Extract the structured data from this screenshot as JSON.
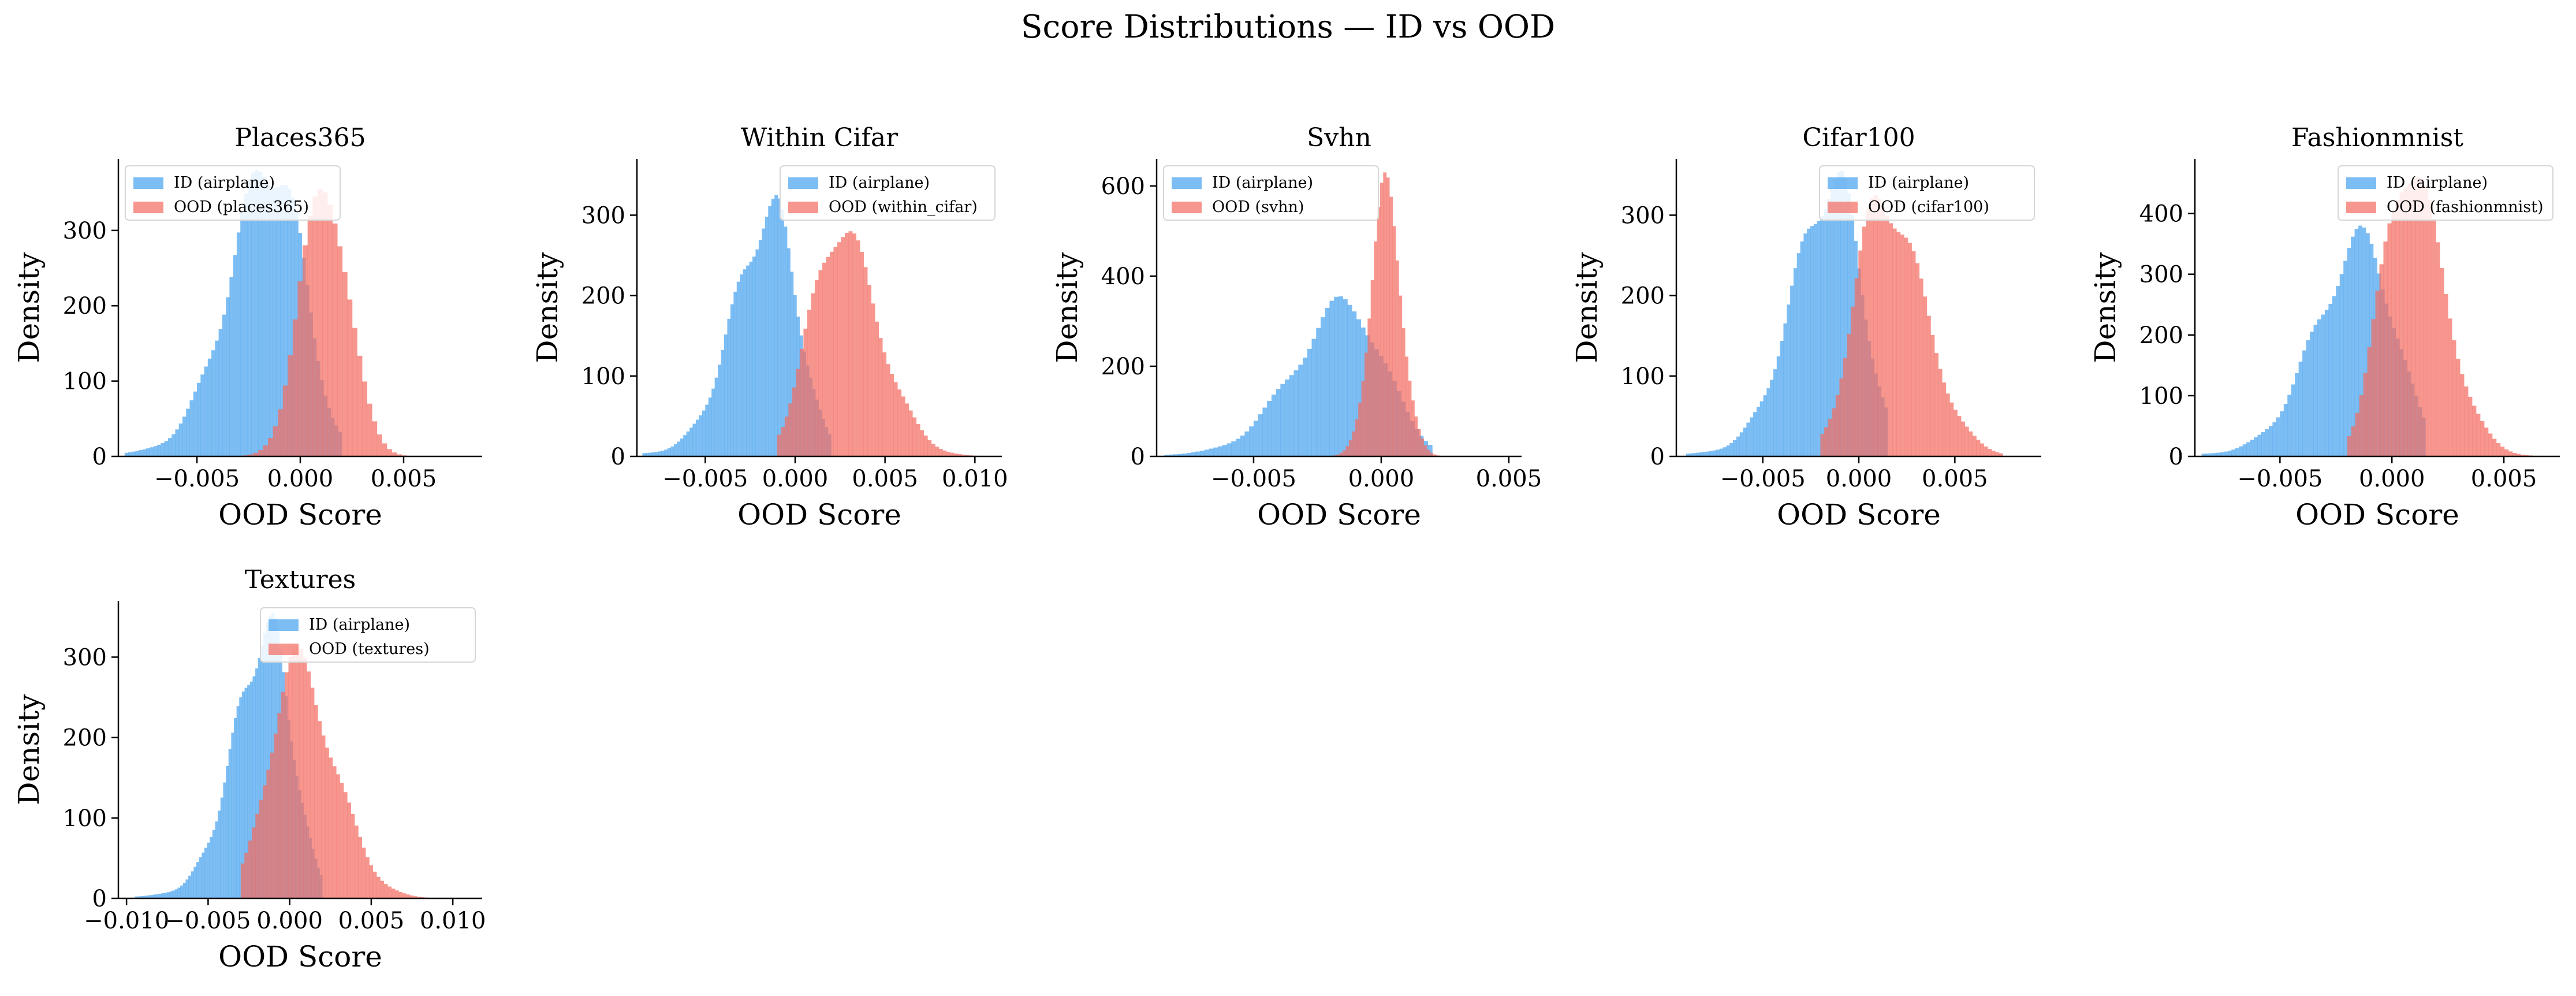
{
  "figure": {
    "title": "Score Distributions — ID vs OOD"
  },
  "colors": {
    "id": "#4aa3ef",
    "ood": "#f26d62",
    "id_alpha": 0.72,
    "ood_alpha": 0.72
  },
  "chart_data": [
    {
      "type": "histogram",
      "title": "Places365",
      "xlabel": "OOD Score",
      "ylabel": "Density",
      "legend_position": "top-left",
      "xlim": [
        -0.0088,
        0.0088
      ],
      "ylim": [
        0,
        395
      ],
      "xticks": [
        -0.005,
        0.0,
        0.005
      ],
      "xtick_labels": [
        "−0.005",
        "0.000",
        "0.005"
      ],
      "yticks": [
        0,
        100,
        200,
        300
      ],
      "series": [
        {
          "name": "ID (airplane)",
          "kind": "id",
          "mean": -0.0012,
          "std": 0.0014,
          "skew": -1,
          "tail": 0.008,
          "peak": 380,
          "range": [
            -0.0085,
            0.002
          ],
          "bins": 60
        },
        {
          "name": "OOD (places365)",
          "kind": "ood",
          "mean": 0.0012,
          "std": 0.00115,
          "skew": 0,
          "tail": 0,
          "peak": 355,
          "range": [
            -0.003,
            0.0085
          ],
          "bins": 48
        }
      ]
    },
    {
      "type": "histogram",
      "title": "Within Cifar",
      "xlabel": "OOD Score",
      "ylabel": "Density",
      "legend_position": "top-right",
      "xlim": [
        -0.0088,
        0.0115
      ],
      "ylim": [
        0,
        370
      ],
      "xticks": [
        -0.005,
        0.0,
        0.005,
        0.01
      ],
      "xtick_labels": [
        "−0.005",
        "0.000",
        "0.005",
        "0.010"
      ],
      "yticks": [
        0,
        100,
        200,
        300
      ],
      "series": [
        {
          "name": "ID (airplane)",
          "kind": "id",
          "mean": -0.0012,
          "std": 0.0014,
          "skew": -1,
          "tail": 0.008,
          "peak": 325,
          "range": [
            -0.0085,
            0.002
          ],
          "bins": 60
        },
        {
          "name": "OOD (within_cifar)",
          "kind": "ood",
          "mean": 0.0023,
          "std": 0.0015,
          "skew": 1,
          "tail": 0,
          "peak": 280,
          "range": [
            -0.001,
            0.0105
          ],
          "bins": 55
        }
      ]
    },
    {
      "type": "histogram",
      "title": "Svhn",
      "xlabel": "OOD Score",
      "ylabel": "Density",
      "legend_position": "top-left",
      "xlim": [
        -0.0088,
        0.0055
      ],
      "ylim": [
        0,
        660
      ],
      "xticks": [
        -0.005,
        0.0,
        0.005
      ],
      "xtick_labels": [
        "−0.005",
        "0.000",
        "0.005"
      ],
      "yticks": [
        0,
        200,
        400,
        600
      ],
      "series": [
        {
          "name": "ID (airplane)",
          "kind": "id",
          "mean": -0.0012,
          "std": 0.0014,
          "skew": -1,
          "tail": 0.008,
          "peak": 355,
          "range": [
            -0.0085,
            0.002
          ],
          "bins": 60
        },
        {
          "name": "OOD (svhn)",
          "kind": "ood",
          "mean": 0.0002,
          "std": 0.0006,
          "skew": 0,
          "tail": 0,
          "peak": 630,
          "range": [
            -0.002,
            0.0035
          ],
          "bins": 45
        }
      ]
    },
    {
      "type": "histogram",
      "title": "Cifar100",
      "xlabel": "OOD Score",
      "ylabel": "Density",
      "legend_position": "top-right",
      "xlim": [
        -0.0095,
        0.0095
      ],
      "ylim": [
        0,
        370
      ],
      "xticks": [
        -0.005,
        0.0,
        0.005
      ],
      "xtick_labels": [
        "−0.005",
        "0.000",
        "0.005"
      ],
      "yticks": [
        0,
        100,
        200,
        300
      ],
      "series": [
        {
          "name": "ID (airplane)",
          "kind": "id",
          "mean": -0.0012,
          "std": 0.0014,
          "skew": -1,
          "tail": 0.008,
          "peak": 355,
          "range": [
            -0.009,
            0.0015
          ],
          "bins": 60
        },
        {
          "name": "OOD (cifar100)",
          "kind": "ood",
          "mean": 0.0012,
          "std": 0.0014,
          "skew": 1,
          "tail": 0,
          "peak": 325,
          "range": [
            -0.002,
            0.0075
          ],
          "bins": 48
        }
      ]
    },
    {
      "type": "histogram",
      "title": "Fashionmnist",
      "xlabel": "OOD Score",
      "ylabel": "Density",
      "legend_position": "top-right",
      "xlim": [
        -0.0088,
        0.0075
      ],
      "ylim": [
        0,
        490
      ],
      "xticks": [
        -0.005,
        0.0,
        0.005
      ],
      "xtick_labels": [
        "−0.005",
        "0.000",
        "0.005"
      ],
      "yticks": [
        0,
        100,
        200,
        300,
        400
      ],
      "series": [
        {
          "name": "ID (airplane)",
          "kind": "id",
          "mean": -0.0012,
          "std": 0.0014,
          "skew": -1,
          "tail": 0.008,
          "peak": 380,
          "range": [
            -0.0085,
            0.0015
          ],
          "bins": 60
        },
        {
          "name": "OOD (fashionmnist)",
          "kind": "ood",
          "mean": 0.0006,
          "std": 0.0011,
          "skew": 1,
          "tail": 0,
          "peak": 460,
          "range": [
            -0.002,
            0.007
          ],
          "bins": 50
        }
      ]
    },
    {
      "type": "histogram",
      "title": "Textures",
      "xlabel": "OOD Score",
      "ylabel": "Density",
      "legend_position": "top-right",
      "xlim": [
        -0.0105,
        0.0118
      ],
      "ylim": [
        0,
        370
      ],
      "xticks": [
        -0.01,
        -0.005,
        0.0,
        0.005,
        0.01
      ],
      "xtick_labels": [
        "−0.010",
        "−0.005",
        "0.000",
        "0.005",
        "0.010"
      ],
      "yticks": [
        0,
        100,
        200,
        300
      ],
      "series": [
        {
          "name": "ID (airplane)",
          "kind": "id",
          "mean": -0.0012,
          "std": 0.0014,
          "skew": -1,
          "tail": 0.008,
          "peak": 355,
          "range": [
            -0.0095,
            0.002
          ],
          "bins": 70
        },
        {
          "name": "OOD (textures)",
          "kind": "ood",
          "mean": 0.0003,
          "std": 0.0016,
          "skew": 1,
          "tail": 0,
          "peak": 315,
          "range": [
            -0.003,
            0.0105
          ],
          "bins": 60
        }
      ]
    }
  ]
}
